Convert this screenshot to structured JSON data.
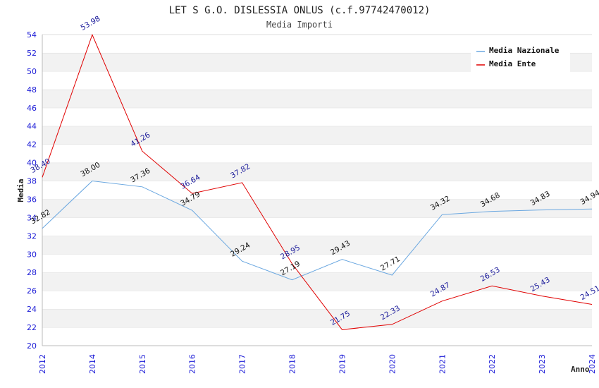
{
  "chart_data": {
    "type": "line",
    "title": "LET S G.O. DISLESSIA ONLUS (c.f.97742470012)",
    "subtitle": "Media Importi",
    "xlabel": "Anno",
    "ylabel": "Media",
    "categories": [
      "2012",
      "2014",
      "2015",
      "2016",
      "2017",
      "2018",
      "2019",
      "2020",
      "2021",
      "2022",
      "2023",
      "2024"
    ],
    "yticks": [
      "20",
      "22",
      "24",
      "26",
      "28",
      "30",
      "32",
      "34",
      "36",
      "38",
      "40",
      "42",
      "44",
      "46",
      "48",
      "50",
      "52",
      "54"
    ],
    "ylim": [
      20,
      54
    ],
    "grid": "horizontal bands",
    "legend_position": "top-right",
    "series": [
      {
        "name": "Media Nazionale",
        "color": "#6aa7e0",
        "label_color": "#111111",
        "values": [
          32.82,
          38.0,
          37.36,
          34.79,
          29.24,
          27.19,
          29.43,
          27.71,
          34.32,
          34.68,
          34.83,
          34.94
        ],
        "labels": [
          "32.82",
          "38.00",
          "37.36",
          "34.79",
          "29.24",
          "27.19",
          "29.43",
          "27.71",
          "34.32",
          "34.68",
          "34.83",
          "34.94"
        ]
      },
      {
        "name": "Media Ente",
        "color": "#e00000",
        "label_color": "#1a1a9a",
        "values": [
          38.4,
          53.98,
          41.26,
          36.64,
          37.82,
          28.95,
          21.75,
          22.33,
          24.87,
          26.53,
          25.43,
          24.51
        ],
        "labels": [
          "38.40",
          "53.98",
          "41.26",
          "36.64",
          "37.82",
          "28.95",
          "21.75",
          "22.33",
          "24.87",
          "26.53",
          "25.43",
          "24.51"
        ]
      }
    ]
  }
}
